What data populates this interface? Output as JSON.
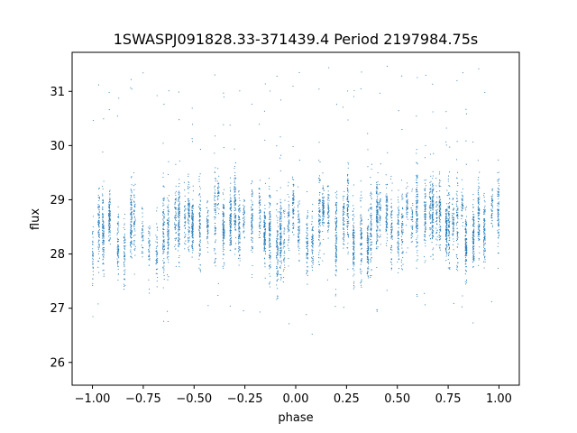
{
  "chart_data": {
    "type": "scatter",
    "title": "1SWASPJ091828.33-371439.4 Period 2197984.75s",
    "xlabel": "phase",
    "ylabel": "flux",
    "xlim": [
      -1.1,
      1.1
    ],
    "ylim": [
      25.58,
      31.72
    ],
    "xticks": [
      -1.0,
      -0.75,
      -0.5,
      -0.25,
      0.0,
      0.25,
      0.5,
      0.75,
      1.0
    ],
    "xtick_labels": [
      "−1.00",
      "−0.75",
      "−0.50",
      "−0.25",
      "0.00",
      "0.25",
      "0.50",
      "0.75",
      "1.00"
    ],
    "yticks": [
      26,
      27,
      28,
      29,
      30,
      31
    ],
    "ytick_labels": [
      "26",
      "27",
      "28",
      "29",
      "30",
      "31"
    ],
    "grid": false,
    "series": [
      {
        "color": "#1f77b4",
        "sample_points": [
          [
            -1.0,
            27.9
          ],
          [
            -0.96,
            28.9
          ],
          [
            -0.93,
            28.3
          ],
          [
            -0.9,
            28.6
          ],
          [
            -0.85,
            28.2
          ],
          [
            -0.8,
            28.6
          ],
          [
            -0.75,
            28.3
          ],
          [
            -0.7,
            28.1
          ],
          [
            -0.65,
            28.4
          ],
          [
            -0.6,
            28.5
          ],
          [
            -0.55,
            28.7
          ],
          [
            -0.5,
            28.8
          ],
          [
            -0.45,
            28.6
          ],
          [
            -0.4,
            28.9
          ],
          [
            -0.35,
            28.7
          ],
          [
            -0.3,
            28.7
          ],
          [
            -0.25,
            28.6
          ],
          [
            -0.2,
            28.9
          ],
          [
            -0.15,
            28.2
          ],
          [
            -0.1,
            28.4
          ],
          [
            -0.05,
            28.1
          ],
          [
            0.0,
            28.9
          ],
          [
            0.05,
            28.0
          ],
          [
            0.1,
            28.3
          ],
          [
            0.15,
            28.8
          ],
          [
            0.2,
            28.5
          ],
          [
            0.25,
            28.7
          ],
          [
            0.3,
            28.0
          ],
          [
            0.35,
            28.3
          ],
          [
            0.4,
            28.5
          ],
          [
            0.45,
            28.7
          ],
          [
            0.5,
            28.6
          ],
          [
            0.55,
            28.8
          ],
          [
            0.6,
            28.9
          ],
          [
            0.65,
            28.7
          ],
          [
            0.7,
            28.8
          ],
          [
            0.75,
            28.7
          ],
          [
            0.8,
            28.8
          ],
          [
            0.85,
            28.3
          ],
          [
            0.9,
            28.5
          ],
          [
            0.95,
            28.7
          ],
          [
            1.0,
            29.0
          ]
        ]
      }
    ]
  }
}
